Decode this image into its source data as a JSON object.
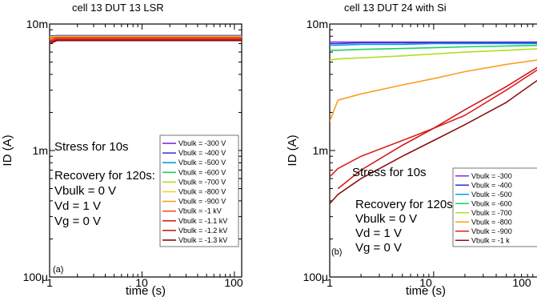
{
  "figure": {
    "panels": [
      {
        "id": "a",
        "title": "cell 13 DUT 13 LSR",
        "panel_label": "(a)",
        "xlabel": "time (s)",
        "ylabel": "ID (A)",
        "yticks": [
          "10m",
          "1m",
          "100μ"
        ],
        "xticks": [
          "1",
          "10",
          "100"
        ],
        "annotation": [
          "Stress for 10s",
          "",
          "Recovery for 120s:",
          "Vbulk = 0 V",
          "Vd = 1 V",
          "Vg = 0 V"
        ],
        "legend": [
          "Vbulk = -300 V",
          "Vbulk = -400 V",
          "Vbulk = -500 V",
          "Vbulk = -600 V",
          "Vbulk = -700 V",
          "Vbulk = -800 V",
          "Vbulk = -900 V",
          "Vbulk = -1 kV",
          "Vbulk = -1.1 kV",
          "Vbulk = -1.2 kV",
          "Vbulk = -1.3 kV"
        ]
      },
      {
        "id": "b",
        "title": "cell 13 DUT 24 with Si",
        "panel_label": "(b)",
        "xlabel": "time (s)",
        "ylabel": "ID (A)",
        "yticks": [
          "10m",
          "1m",
          "100μ"
        ],
        "xticks": [
          "1",
          "10",
          "100"
        ],
        "annotation": [
          "Stress for 10s",
          "",
          "Recovery for 120s:",
          "Vbulk = 0 V",
          "Vd = 1 V",
          "Vg = 0 V"
        ],
        "legend": [
          "Vbulk = -300",
          "Vbulk = -400",
          "Vbulk = -500",
          "Vbulk = -600",
          "Vbulk = -700",
          "Vbulk = -800",
          "Vbulk = -900",
          "Vbulk = -1 k"
        ]
      }
    ]
  },
  "chart_data": [
    {
      "type": "line",
      "title": "cell 13 DUT 13 LSR",
      "xlabel": "time (s)",
      "ylabel": "ID (A)",
      "xscale": "log",
      "yscale": "log",
      "xlim": [
        1,
        120
      ],
      "ylim": [
        0.0001,
        0.01
      ],
      "grid": false,
      "legend_position": "bottom-right",
      "x": [
        1,
        1.2,
        2,
        5,
        10,
        20,
        50,
        120
      ],
      "series": [
        {
          "name": "Vbulk = -300 V",
          "color": "#8a2be2",
          "values": [
            0.008,
            0.0081,
            0.0081,
            0.0081,
            0.0081,
            0.0081,
            0.0081,
            0.0081
          ]
        },
        {
          "name": "Vbulk = -400 V",
          "color": "#3030d0",
          "values": [
            0.008,
            0.0081,
            0.0081,
            0.0081,
            0.0081,
            0.0081,
            0.0081,
            0.0081
          ]
        },
        {
          "name": "Vbulk = -500 V",
          "color": "#00a0e0",
          "values": [
            0.0079,
            0.008,
            0.008,
            0.008,
            0.008,
            0.008,
            0.008,
            0.008
          ]
        },
        {
          "name": "Vbulk = -600 V",
          "color": "#20d060",
          "values": [
            0.0079,
            0.008,
            0.008,
            0.008,
            0.008,
            0.008,
            0.008,
            0.008
          ]
        },
        {
          "name": "Vbulk = -700 V",
          "color": "#b0e020",
          "values": [
            0.0079,
            0.008,
            0.008,
            0.008,
            0.008,
            0.008,
            0.008,
            0.008
          ]
        },
        {
          "name": "Vbulk = -800 V",
          "color": "#f0d020",
          "values": [
            0.0078,
            0.0079,
            0.0079,
            0.0079,
            0.0079,
            0.0079,
            0.0079,
            0.0079
          ]
        },
        {
          "name": "Vbulk = -900 V",
          "color": "#ff9c20",
          "values": [
            0.0078,
            0.0079,
            0.0079,
            0.0079,
            0.0079,
            0.0079,
            0.0079,
            0.0079
          ]
        },
        {
          "name": "Vbulk = -1 kV",
          "color": "#ff5020",
          "values": [
            0.0077,
            0.0078,
            0.0078,
            0.0078,
            0.0078,
            0.0078,
            0.0078,
            0.0078
          ]
        },
        {
          "name": "Vbulk = -1.1 kV",
          "color": "#e02020",
          "values": [
            0.0074,
            0.0077,
            0.0077,
            0.0077,
            0.0077,
            0.0077,
            0.0077,
            0.0077
          ]
        },
        {
          "name": "Vbulk = -1.2 kV",
          "color": "#b81818",
          "values": [
            0.0072,
            0.0075,
            0.0075,
            0.0075,
            0.0075,
            0.0075,
            0.0075,
            0.0075
          ]
        },
        {
          "name": "Vbulk = -1.3 kV",
          "color": "#8b1010",
          "values": [
            0.007,
            0.0074,
            0.0074,
            0.0074,
            0.0074,
            0.0074,
            0.0074,
            0.0074
          ]
        }
      ]
    },
    {
      "type": "line",
      "title": "cell 13 DUT 24 with Si",
      "xlabel": "time (s)",
      "ylabel": "ID (A)",
      "xscale": "log",
      "yscale": "log",
      "xlim": [
        1,
        120
      ],
      "ylim": [
        0.0001,
        0.01
      ],
      "grid": false,
      "legend_position": "bottom-right",
      "x": [
        1,
        1.2,
        2,
        5,
        10,
        20,
        50,
        120
      ],
      "series": [
        {
          "name": "Vbulk = -300",
          "color": "#8a2be2",
          "values": [
            0.0072,
            0.0072,
            0.0072,
            0.0072,
            0.0072,
            0.0072,
            0.0072,
            0.0072
          ]
        },
        {
          "name": "Vbulk = -400",
          "color": "#3030d0",
          "values": [
            0.007,
            0.007,
            0.0071,
            0.0071,
            0.0071,
            0.0071,
            0.0071,
            0.0071
          ]
        },
        {
          "name": "Vbulk = -500",
          "color": "#00a0e0",
          "values": [
            0.0068,
            0.0068,
            0.0069,
            0.0069,
            0.007,
            0.007,
            0.007,
            0.007
          ]
        },
        {
          "name": "Vbulk = -600",
          "color": "#20d060",
          "values": [
            0.0062,
            0.0062,
            0.0063,
            0.0064,
            0.0065,
            0.0066,
            0.0067,
            0.0068
          ]
        },
        {
          "name": "Vbulk = -700",
          "color": "#b0e020",
          "values": [
            0.0052,
            0.0053,
            0.0054,
            0.0056,
            0.0058,
            0.006,
            0.0062,
            0.0064
          ]
        },
        {
          "name": "Vbulk = -800",
          "color": "#ff9c20",
          "values": [
            0.0017,
            0.0025,
            0.0028,
            0.0033,
            0.0037,
            0.0042,
            0.0048,
            0.0053
          ]
        },
        {
          "name": "Vbulk = -900",
          "color": "#e02020",
          "values": [
            0.00062,
            0.00072,
            0.0009,
            0.0012,
            0.0015,
            0.0019,
            0.003,
            0.0048
          ]
        },
        {
          "name": "Vbulk = -1 k",
          "color": "#8b1010",
          "values": [
            0.00038,
            0.00045,
            0.0006,
            0.0009,
            0.0012,
            0.0016,
            0.0024,
            0.004
          ]
        }
      ],
      "extra_series": [
        {
          "color": "#d01818",
          "x": [
            1.2,
            2,
            5,
            10,
            20,
            50,
            120
          ],
          "values": [
            0.0005,
            0.0007,
            0.0011,
            0.0015,
            0.0021,
            0.0032,
            0.005
          ]
        }
      ]
    }
  ]
}
